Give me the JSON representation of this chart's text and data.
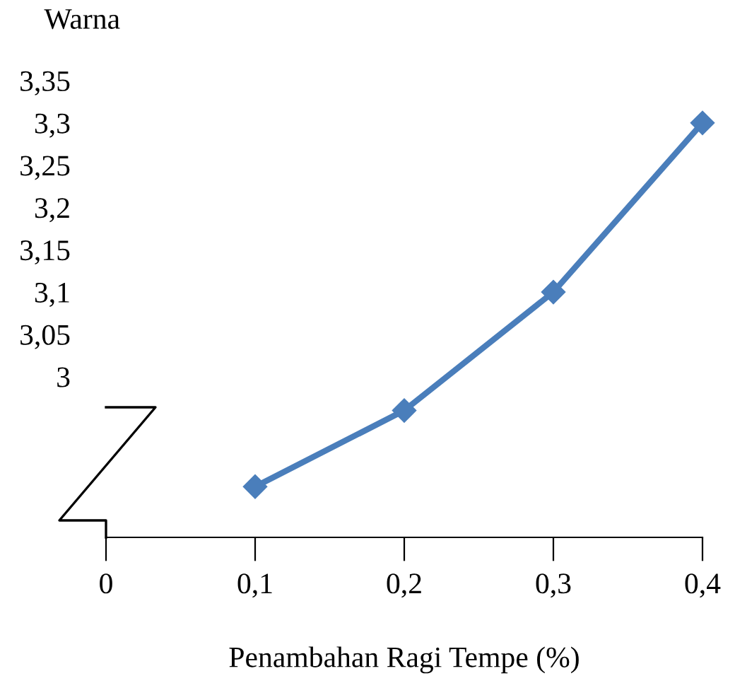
{
  "chart_data": {
    "type": "line",
    "xlabel": "Penambahan Ragi Tempe (%)",
    "ylabel": "Warna",
    "x": [
      0.1,
      0.2,
      0.3,
      0.4
    ],
    "series": [
      {
        "color": "#4a7ebb",
        "values": [
          2.87,
          2.96,
          3.1,
          3.3
        ]
      }
    ],
    "xlim": [
      0,
      0.4
    ],
    "xticks": [
      {
        "value": 0,
        "label": "0"
      },
      {
        "value": 0.1,
        "label": "0,1"
      },
      {
        "value": 0.2,
        "label": "0,2"
      },
      {
        "value": 0.3,
        "label": "0,3"
      },
      {
        "value": 0.4,
        "label": "0,4"
      }
    ],
    "ylim": [
      2.81,
      3.35
    ],
    "yticks": [
      {
        "value": 3,
        "label": "3"
      },
      {
        "value": 3.05,
        "label": "3,05"
      },
      {
        "value": 3.1,
        "label": "3,1"
      },
      {
        "value": 3.15,
        "label": "3,15"
      },
      {
        "value": 3.2,
        "label": "3,2"
      },
      {
        "value": 3.25,
        "label": "3,25"
      },
      {
        "value": 3.3,
        "label": "3,3"
      },
      {
        "value": 3.35,
        "label": "3,35"
      }
    ],
    "marker": "diamond",
    "line_style": "solid",
    "grid": false,
    "legend": false
  }
}
